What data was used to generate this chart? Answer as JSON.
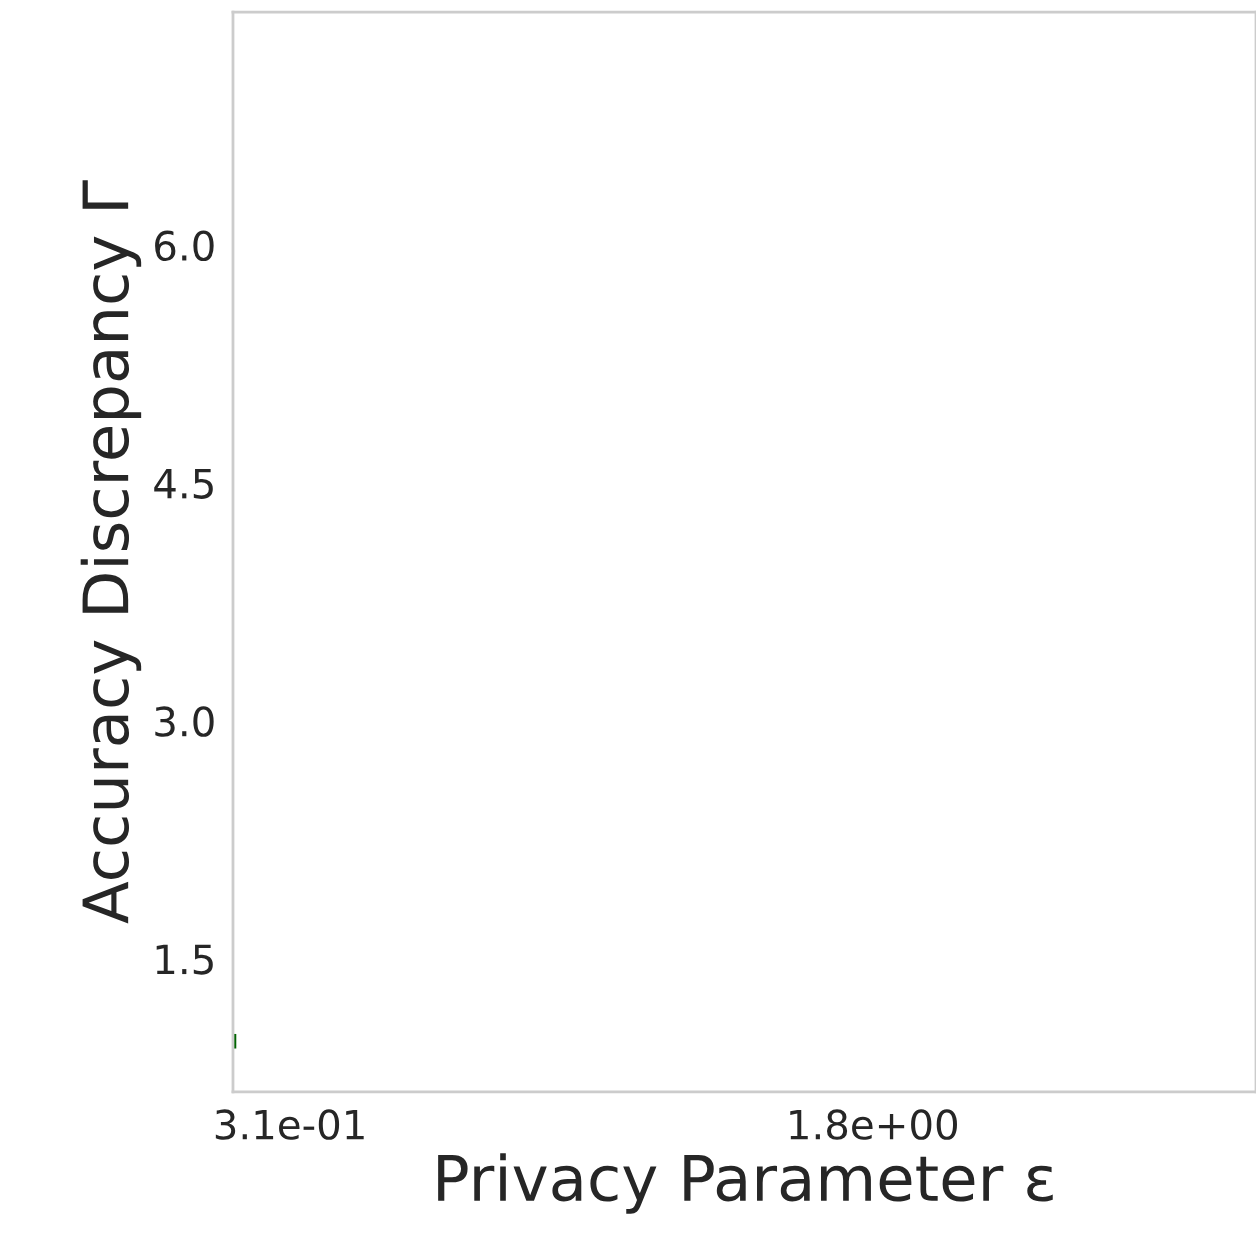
{
  "chart_data": {
    "type": "line",
    "xlabel": "Privacy Parameter ε",
    "ylabel": "Accuracy Discrepancy Γ",
    "x": [
      0.168,
      0.168
    ],
    "series": [
      {
        "color": "#006400",
        "values": [
          1.015,
          0.945
        ]
      }
    ],
    "xlim": [
      0.164,
      2.78
    ],
    "xticks": [
      {
        "value": 0.31,
        "label": "3.1e-01"
      },
      {
        "value": 1.8,
        "label": "1.8e+00"
      }
    ],
    "ylim": [
      0.66,
      7.47
    ],
    "yticks": [
      {
        "value": 1.5,
        "label": "1.5"
      },
      {
        "value": 3.0,
        "label": "3.0"
      },
      {
        "value": 4.5,
        "label": "4.5"
      },
      {
        "value": 6.0,
        "label": "6.0"
      }
    ],
    "grid": false,
    "marker": "none"
  }
}
